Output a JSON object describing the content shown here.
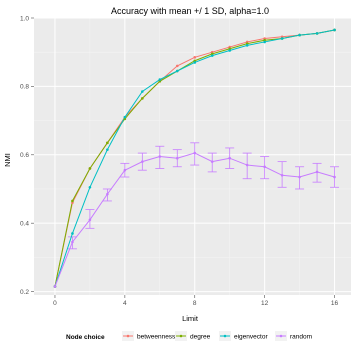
{
  "chart_data": {
    "type": "line",
    "title": "Accuracy with mean +/ 1 SD, alpha=1.0",
    "xlabel": "Limit",
    "ylabel": "NMI",
    "xlim": [
      -1.2,
      17.0
    ],
    "ylim": [
      0.19,
      1.0
    ],
    "x_ticks": [
      0,
      4,
      8,
      12,
      16
    ],
    "x_minor_ticks": [
      2,
      6,
      10,
      14
    ],
    "y_ticks": [
      0.2,
      0.4,
      0.6,
      0.8,
      1.0
    ],
    "y_tick_labels": [
      "0.2",
      "0.4",
      "0.6",
      "0.8",
      "1.0"
    ],
    "x": [
      0,
      1,
      2,
      3,
      4,
      5,
      6,
      7,
      8,
      9,
      10,
      11,
      12,
      13,
      14,
      15,
      16
    ],
    "legend": {
      "title": "Node choice",
      "position": "bottom"
    },
    "grid": true,
    "series": [
      {
        "name": "betweenness",
        "color": "#F8766D",
        "values": [
          0.215,
          0.46,
          0.56,
          0.635,
          0.71,
          0.765,
          0.815,
          0.86,
          0.885,
          0.9,
          0.915,
          0.93,
          0.94,
          0.945,
          0.95,
          0.955,
          0.965
        ]
      },
      {
        "name": "degree",
        "color": "#7CAE00",
        "values": [
          0.215,
          0.465,
          0.56,
          0.635,
          0.705,
          0.765,
          0.815,
          0.845,
          0.875,
          0.895,
          0.91,
          0.925,
          0.935,
          0.94,
          0.95,
          0.955,
          0.965
        ]
      },
      {
        "name": "eigenvector",
        "color": "#00BFC4",
        "values": [
          0.215,
          0.37,
          0.505,
          0.615,
          0.71,
          0.785,
          0.82,
          0.845,
          0.87,
          0.89,
          0.905,
          0.92,
          0.93,
          0.94,
          0.95,
          0.955,
          0.965
        ]
      },
      {
        "name": "random",
        "color": "#C77CFF",
        "values": [
          0.215,
          0.345,
          0.41,
          0.485,
          0.555,
          0.58,
          0.595,
          0.59,
          0.605,
          0.58,
          0.59,
          0.57,
          0.565,
          0.54,
          0.535,
          0.55,
          0.535
        ],
        "error_low": [
          0.215,
          0.325,
          0.385,
          0.465,
          0.535,
          0.555,
          0.56,
          0.565,
          0.57,
          0.55,
          0.56,
          0.53,
          0.53,
          0.505,
          0.5,
          0.52,
          0.505
        ],
        "error_high": [
          0.215,
          0.36,
          0.44,
          0.5,
          0.575,
          0.605,
          0.625,
          0.615,
          0.635,
          0.605,
          0.62,
          0.605,
          0.595,
          0.58,
          0.565,
          0.575,
          0.565
        ]
      }
    ]
  }
}
